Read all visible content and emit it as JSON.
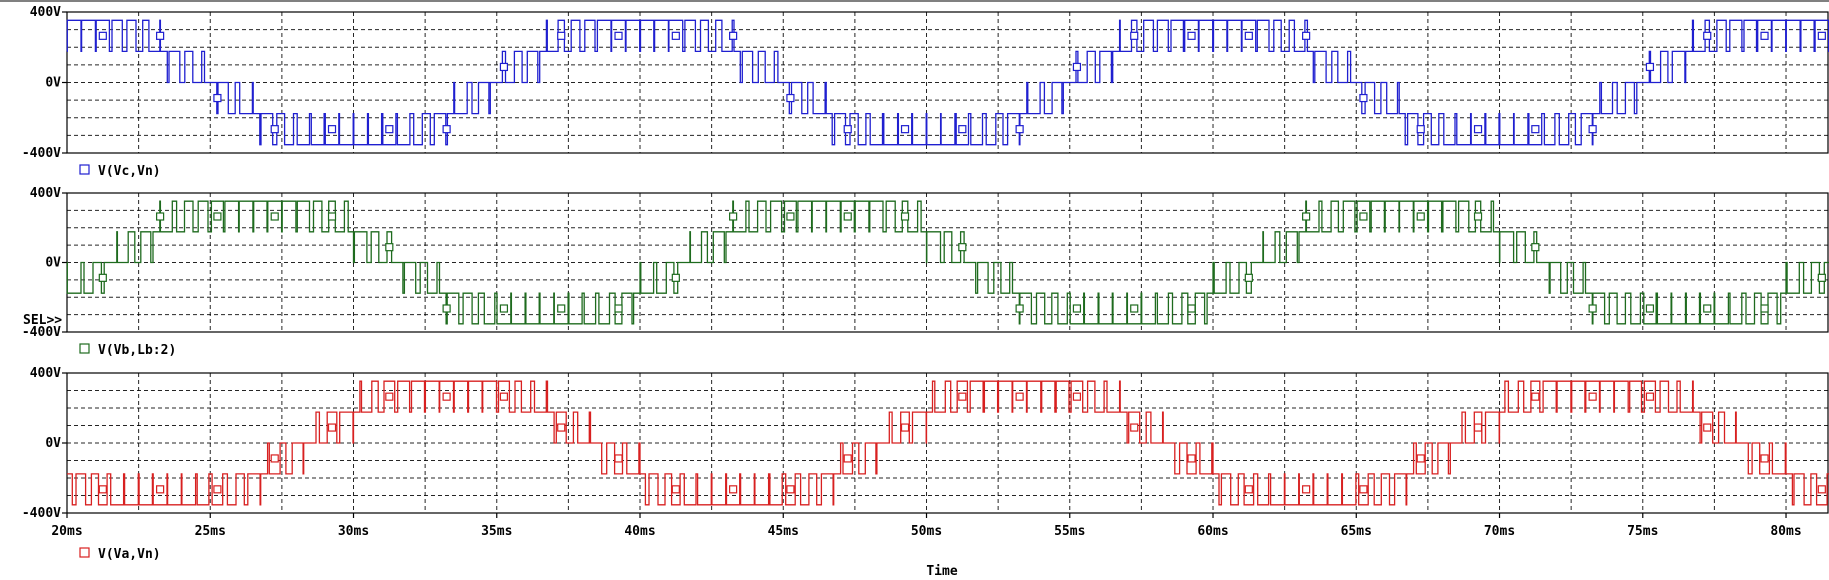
{
  "chart_data": {
    "type": "line",
    "x_axis": {
      "title": "Time",
      "range_ms": [
        20,
        81.5
      ],
      "ticks_ms": [
        20,
        25,
        30,
        35,
        40,
        45,
        50,
        55,
        60,
        65,
        70,
        75,
        80
      ],
      "tick_labels": [
        "20ms",
        "25ms",
        "30ms",
        "35ms",
        "40ms",
        "45ms",
        "50ms",
        "55ms",
        "60ms",
        "65ms",
        "70ms",
        "75ms",
        "80ms"
      ]
    },
    "sel_marker": "SEL>>",
    "grid": true,
    "panels": [
      {
        "series_name": "V(Vc,Vn)",
        "color": "#1f1fd0",
        "marker": "square",
        "ylim": [
          -400,
          400
        ],
        "ytick_labels": [
          "400V",
          "0V",
          "-400V"
        ],
        "levels_V": [
          -353,
          -176,
          0,
          176,
          353
        ],
        "fundamental_phase_deg": 90,
        "selected": false
      },
      {
        "series_name": "V(Vb,Lb:2)",
        "color": "#1e6b1e",
        "marker": "square",
        "ylim": [
          -400,
          400
        ],
        "ytick_labels": [
          "400V",
          "0V",
          "-400V"
        ],
        "levels_V": [
          -353,
          -176,
          0,
          176,
          353
        ],
        "fundamental_phase_deg": -30,
        "selected": true
      },
      {
        "series_name": "V(Va,Vn)",
        "color": "#d82020",
        "marker": "square",
        "ylim": [
          -400,
          400
        ],
        "ytick_labels": [
          "400V",
          "0V",
          "-400V"
        ],
        "levels_V": [
          -353,
          -176,
          0,
          176,
          353
        ],
        "fundamental_phase_deg": 210,
        "selected": false
      }
    ],
    "fundamental_period_ms": 20,
    "switching_period_ms": 0.5
  }
}
